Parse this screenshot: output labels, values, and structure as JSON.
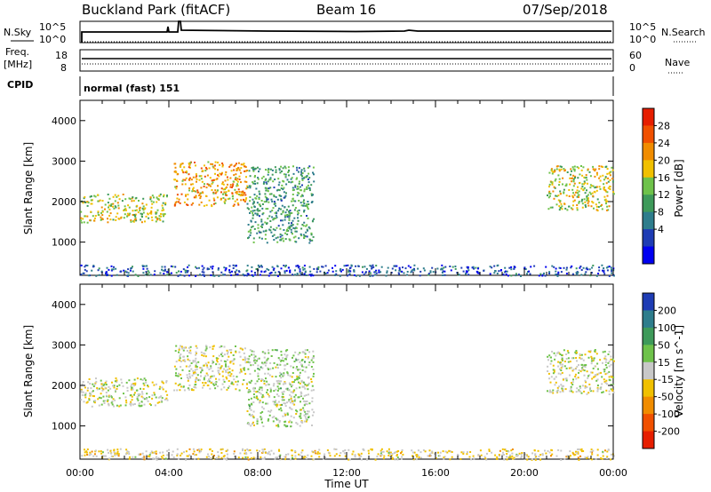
{
  "header": {
    "station": "Buckland Park (fitACF)",
    "beam": "Beam 16",
    "date": "07/Sep/2018"
  },
  "left_labels": {
    "nsky": "N.Sky",
    "freq": "Freq.",
    "freq_unit": "[MHz]",
    "cpid": "CPID"
  },
  "right_labels": {
    "nsearch": "N.Search",
    "nave": "Nave"
  },
  "noise_ticks": {
    "top": "10^5",
    "bottom": "10^0"
  },
  "freq_ticks": {
    "top": "18",
    "bottom": "8"
  },
  "nave_ticks": {
    "top": "60",
    "bottom": "0"
  },
  "cpid_text": "normal (fast) 151",
  "x_axis": {
    "title": "Time UT",
    "ticks": [
      "00:00",
      "04:00",
      "08:00",
      "12:00",
      "16:00",
      "20:00",
      "00:00"
    ]
  },
  "y_axis": {
    "title": "Slant Range [km]",
    "ticks": [
      "1000",
      "2000",
      "3000",
      "4000"
    ]
  },
  "power_colorbar": {
    "title": "Power [dB]",
    "ticks": [
      "4",
      "8",
      "12",
      "16",
      "20",
      "24",
      "28"
    ],
    "colors": [
      "#0000f0",
      "#1e3cb4",
      "#2e7d8c",
      "#3e9a5a",
      "#6ec24a",
      "#f0c000",
      "#f08c00",
      "#f05000",
      "#e61e00"
    ]
  },
  "velocity_colorbar": {
    "title": "Velocity [m s^-1]",
    "ticks": [
      "200",
      "100",
      "50",
      "15",
      "-15",
      "-50",
      "-100",
      "-200"
    ],
    "colors": [
      "#1e3cb4",
      "#2e7d8c",
      "#3e9a5a",
      "#6ec24a",
      "#c8c8c8",
      "#f0c000",
      "#f08c00",
      "#f05000",
      "#e61e00"
    ]
  },
  "chart_data": [
    {
      "type": "heatmap",
      "title": "Power",
      "xlabel": "Time UT",
      "ylabel": "Slant Range [km]",
      "xlim": [
        0,
        24
      ],
      "ylim": [
        180,
        4500
      ],
      "colorbar": "Power [dB]",
      "regions": [
        {
          "t": [
            0.0,
            3.9
          ],
          "range": [
            1500,
            2200
          ],
          "value": 18
        },
        {
          "t": [
            4.2,
            7.5
          ],
          "range": [
            1900,
            3000
          ],
          "value": 22
        },
        {
          "t": [
            7.5,
            10.5
          ],
          "range": [
            1000,
            2900
          ],
          "value": 12
        },
        {
          "t": [
            21.0,
            24.0
          ],
          "range": [
            1800,
            2900
          ],
          "value": 18
        },
        {
          "t": [
            0.0,
            24.0
          ],
          "range": [
            180,
            450
          ],
          "value": 6
        }
      ]
    },
    {
      "type": "heatmap",
      "title": "Velocity",
      "xlabel": "Time UT",
      "ylabel": "Slant Range [km]",
      "xlim": [
        0,
        24
      ],
      "ylim": [
        180,
        4500
      ],
      "colorbar": "Velocity [m s^-1]",
      "regions": [
        {
          "t": [
            0.0,
            3.9
          ],
          "range": [
            1500,
            2200
          ],
          "value": 0
        },
        {
          "t": [
            4.2,
            7.5
          ],
          "range": [
            1900,
            3000
          ],
          "value": 0
        },
        {
          "t": [
            7.5,
            10.5
          ],
          "range": [
            1000,
            2900
          ],
          "value": 25
        },
        {
          "t": [
            21.0,
            24.0
          ],
          "range": [
            1800,
            2900
          ],
          "value": 0
        },
        {
          "t": [
            0.0,
            24.0
          ],
          "range": [
            180,
            450
          ],
          "value": -30
        }
      ]
    }
  ]
}
